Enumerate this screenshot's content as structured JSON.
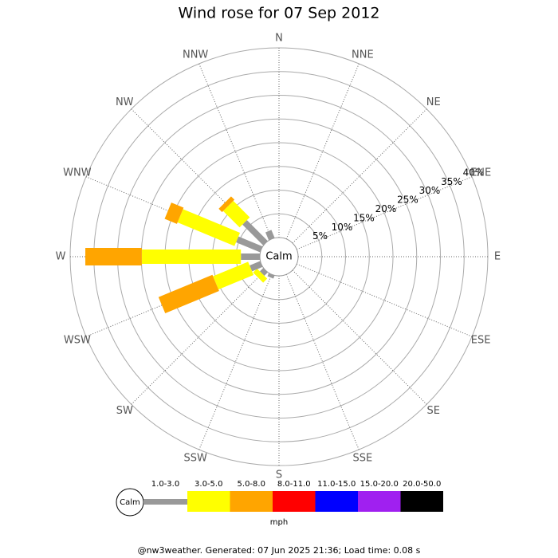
{
  "chart_data": {
    "type": "windrose",
    "title": "Wind rose for 07 Sep 2012",
    "calm_label": "Calm",
    "unit": "mph",
    "footer": "@nw3weather. Generated: 07 Jun 2025 21:36; Load time: 0.08 s",
    "categories": [
      "N",
      "NNE",
      "NE",
      "ENE",
      "E",
      "ESE",
      "SE",
      "SSE",
      "S",
      "SSW",
      "SW",
      "WSW",
      "W",
      "WNW",
      "NW",
      "NNW"
    ],
    "rlim": [
      0,
      40
    ],
    "rticks": [
      {
        "value": 5,
        "label": "5%"
      },
      {
        "value": 10,
        "label": "10%"
      },
      {
        "value": 15,
        "label": "15%"
      },
      {
        "value": 20,
        "label": "20%"
      },
      {
        "value": 25,
        "label": "25%"
      },
      {
        "value": 30,
        "label": "30%"
      },
      {
        "value": 35,
        "label": "35%"
      },
      {
        "value": 40,
        "label": "40%"
      }
    ],
    "series": [
      {
        "name": "1.0-3.0",
        "color": "#999999",
        "values": [
          0,
          0,
          0,
          0,
          0,
          0,
          0,
          0,
          0,
          0.7,
          1.0,
          2.4,
          4.0,
          5.5,
          6.2,
          1.8
        ]
      },
      {
        "name": "3.0-5.0",
        "color": "#ffff00",
        "values": [
          0,
          0,
          0,
          0,
          0,
          0,
          0,
          0,
          0,
          0,
          1.2,
          8.0,
          20.9,
          13.0,
          4.9,
          0
        ]
      },
      {
        "name": "5.0-8.0",
        "color": "#ffa500",
        "values": [
          0,
          0,
          0,
          0,
          0,
          0,
          0,
          0,
          0,
          0,
          0,
          12.3,
          11.9,
          2.8,
          1.0,
          0
        ]
      },
      {
        "name": "8.0-11.0",
        "color": "#ff0000",
        "values": [
          0,
          0,
          0,
          0,
          0,
          0,
          0,
          0,
          0,
          0,
          0,
          0,
          0,
          0,
          0,
          0
        ]
      },
      {
        "name": "11.0-15.0",
        "color": "#0000ff",
        "values": [
          0,
          0,
          0,
          0,
          0,
          0,
          0,
          0,
          0,
          0,
          0,
          0,
          0,
          0,
          0,
          0
        ]
      },
      {
        "name": "15.0-20.0",
        "color": "#a020f0",
        "values": [
          0,
          0,
          0,
          0,
          0,
          0,
          0,
          0,
          0,
          0,
          0,
          0,
          0,
          0,
          0,
          0
        ]
      },
      {
        "name": "20.0-50.0",
        "color": "#000000",
        "values": [
          0,
          0,
          0,
          0,
          0,
          0,
          0,
          0,
          0,
          0,
          0,
          0,
          0,
          0,
          0,
          0
        ]
      }
    ]
  }
}
